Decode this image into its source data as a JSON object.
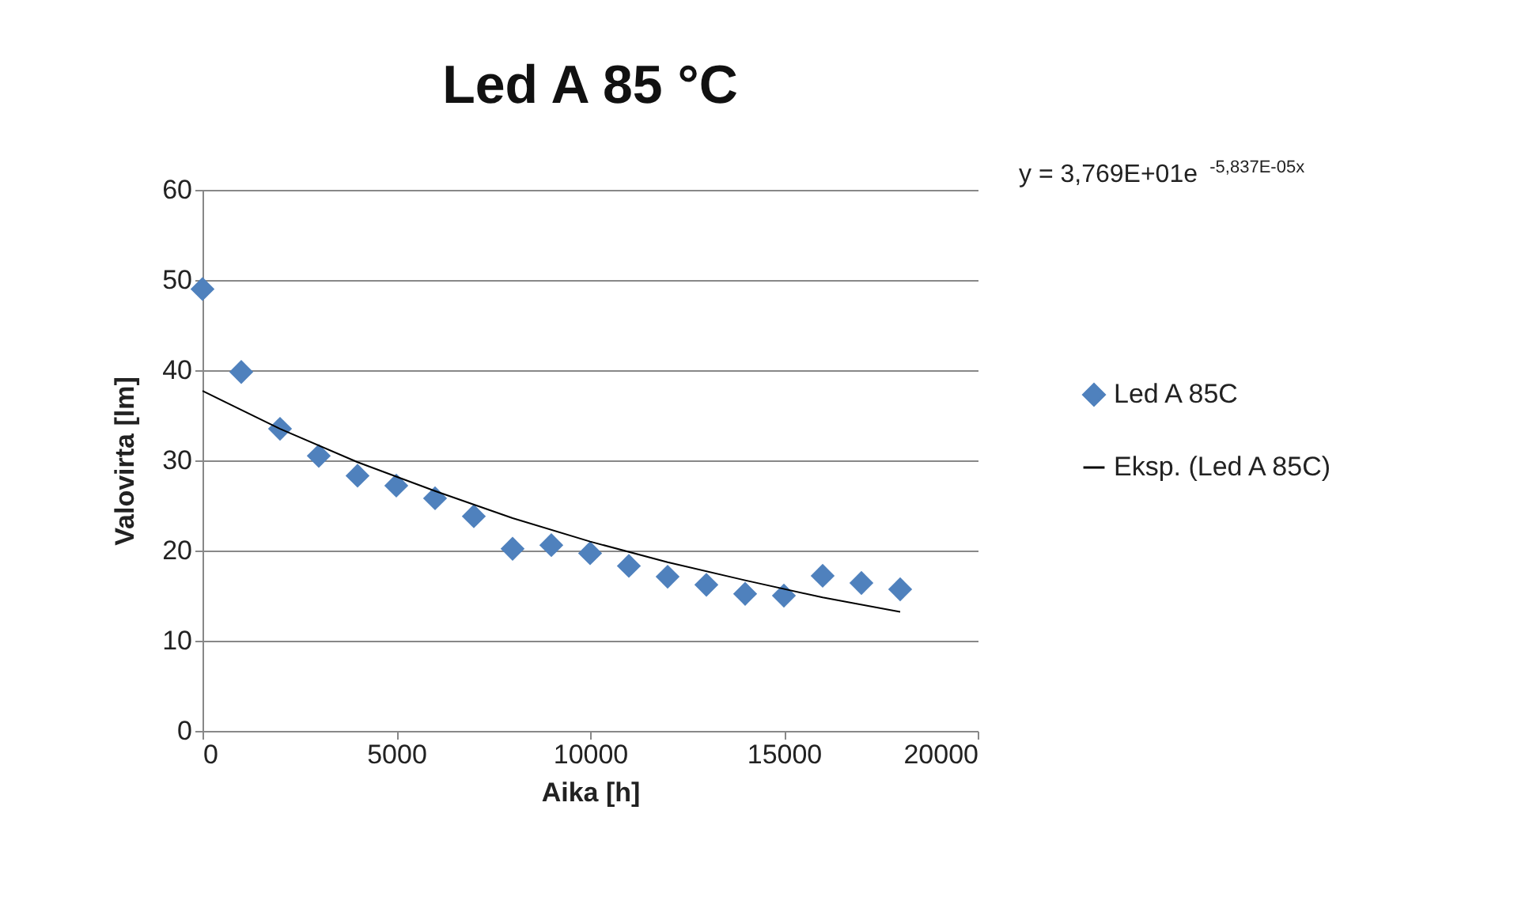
{
  "chart_data": {
    "type": "scatter",
    "title": "Led A 85 °C",
    "xlabel": "Aika [h]",
    "ylabel": "Valovirta [lm]",
    "annotations": [
      "y = 3,769E+01e$^{-5,837E-05x}$"
    ],
    "x": [
      0,
      1000,
      2000,
      3000,
      4000,
      5000,
      6000,
      7000,
      8000,
      9000,
      10000,
      11000,
      12000,
      13000,
      14000,
      15000,
      16000,
      17000,
      18000
    ],
    "series": [
      {
        "name": "Led A 85C",
        "color": "#4f81bd",
        "marker": "diamond",
        "values": [
          49,
          39.8,
          33.5,
          30.5,
          28.3,
          27.2,
          25.8,
          23.8,
          20.2,
          20.6,
          19.7,
          18.3,
          17.1,
          16.2,
          15.2,
          15.0,
          17.2,
          16.4,
          15.7
        ]
      },
      {
        "type": "line",
        "name": "Eksp. (Led A 85C)",
        "color": "#000000",
        "marker": "none",
        "x": [
          0,
          2000,
          4000,
          6000,
          8000,
          10000,
          12000,
          14000,
          16000,
          18000
        ],
        "values": [
          37.7,
          33.5,
          29.8,
          26.6,
          23.6,
          21.0,
          18.7,
          16.7,
          14.8,
          13.2
        ]
      }
    ],
    "line_style": "solid",
    "xlim": [
      0,
      20000
    ],
    "xticks": [
      0,
      5000,
      10000,
      15000,
      20000
    ],
    "ylim": [
      0,
      60
    ],
    "yticks": [
      0,
      10,
      20,
      30,
      40,
      50,
      60
    ],
    "grid": "y",
    "legend": "right"
  }
}
